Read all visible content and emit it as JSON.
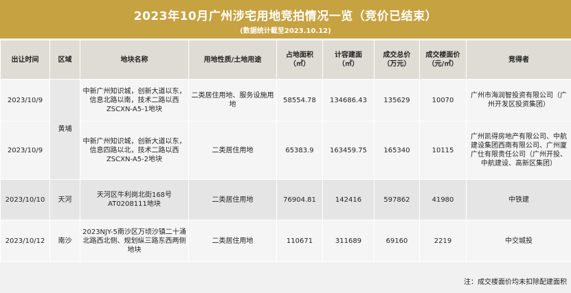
{
  "header": {
    "title": "2023年10月广州涉宅用地竞拍情况一览（竞价已结束）",
    "subtitle": "(数据统计截至2023.10.12)"
  },
  "columns": [
    "出让时间",
    "区域",
    "地块名称",
    "用地性质/土地用途",
    "占地面积\n（㎡）",
    "计容建面\n（㎡）",
    "成交总价\n（万元）",
    "成交楼面价\n（元/㎡）",
    "竞得者"
  ],
  "rows": [
    {
      "date": "2023/10/9",
      "plot": "中新广州知识城，创新大道以东，信息北路以南，技术二路以西ZSCXN-A5-1地块",
      "use": "二类居住用地、服务设施用地",
      "land_area": "58554.78",
      "gfa": "134686.43",
      "total_price": "135629",
      "unit_price": "10070",
      "winner": "广州市海润智投资有限公司（广州开发区投资集团）"
    },
    {
      "date": "2023/10/9",
      "plot": "中新广州知识城，创新大道以东，信息四路以北，技术二路以西ZSCXN-A5-2地块",
      "use": "二类居住用地",
      "land_area": "65383.9",
      "gfa": "163459.75",
      "total_price": "165340",
      "unit_price": "10115",
      "winner": "广州凯得房地产有限公司、中航建设集团西南有限公司、广州厦广仕有限责任公司（广州开投、中航建设、高新区集团）"
    },
    {
      "date": "2023/10/10",
      "district": "天河",
      "plot": "天河区牛利岗北街168号AT0208111地块",
      "use": "二类居住用地",
      "land_area": "76904.81",
      "gfa": "142416",
      "total_price": "597862",
      "unit_price": "41980",
      "winner": "中铁建"
    },
    {
      "date": "2023/10/12",
      "district": "南沙",
      "plot": "2023NJY-5南沙区万顷沙镇二十涌北路西北侧、规划纵三路东西两侧地块",
      "use": "二类居住用地",
      "land_area": "110671",
      "gfa": "311689",
      "total_price": "69160",
      "unit_price": "2219",
      "winner": "中交城投"
    }
  ],
  "merged_district": "黄埔",
  "footnote": "注：成交楼面价均未扣除配建面积"
}
